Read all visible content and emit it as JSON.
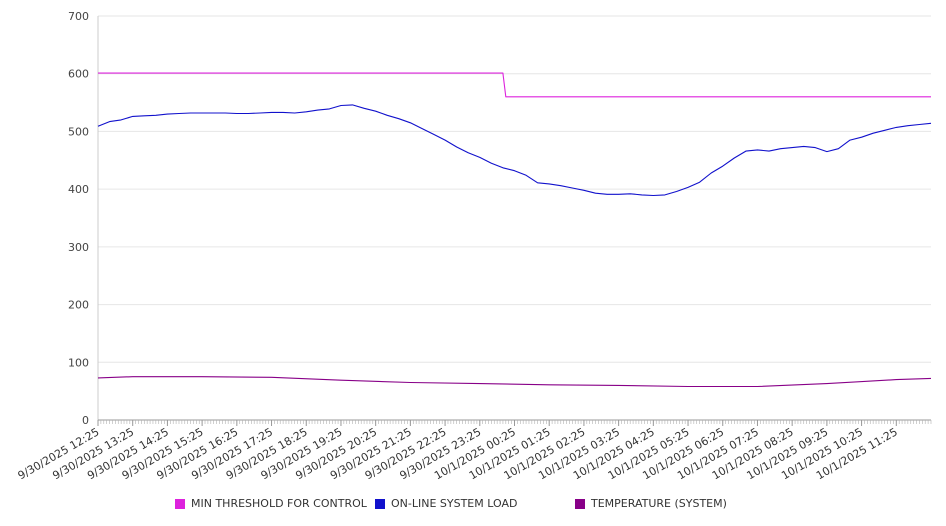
{
  "chart_data": {
    "type": "line",
    "ylim": [
      0,
      700
    ],
    "yticks": [
      0,
      100,
      200,
      300,
      400,
      500,
      600,
      700
    ],
    "grid": true,
    "legend_position": "bottom",
    "x_tick_labels": [
      "9/30/2025 12:25",
      "9/30/2025 13:25",
      "9/30/2025 14:25",
      "9/30/2025 15:25",
      "9/30/2025 16:25",
      "9/30/2025 17:25",
      "9/30/2025 18:25",
      "9/30/2025 19:25",
      "9/30/2025 20:25",
      "9/30/2025 21:25",
      "9/30/2025 22:25",
      "9/30/2025 23:25",
      "10/1/2025 00:25",
      "10/1/2025 01:25",
      "10/1/2025 02:25",
      "10/1/2025 03:25",
      "10/1/2025 04:25",
      "10/1/2025 05:25",
      "10/1/2025 06:25",
      "10/1/2025 07:25",
      "10/1/2025 08:25",
      "10/1/2025 09:25",
      "10/1/2025 10:25",
      "10/1/2025 11:25"
    ],
    "series": [
      {
        "name": "MIN THRESHOLD FOR CONTROL",
        "color": "#dd22dd",
        "points": [
          [
            "9/30/2025 12:25",
            601
          ],
          [
            "10/1/2025 00:05",
            601
          ],
          [
            "10/1/2025 00:10",
            560
          ],
          [
            "10/1/2025 12:25",
            560
          ]
        ]
      },
      {
        "name": "ON-LINE SYSTEM LOAD",
        "color": "#1111cc",
        "points": [
          [
            "9/30/2025 12:25",
            509
          ],
          [
            "9/30/2025 12:45",
            517
          ],
          [
            "9/30/2025 13:05",
            520
          ],
          [
            "9/30/2025 13:25",
            526
          ],
          [
            "9/30/2025 13:45",
            527
          ],
          [
            "9/30/2025 14:05",
            528
          ],
          [
            "9/30/2025 14:25",
            530
          ],
          [
            "9/30/2025 14:45",
            531
          ],
          [
            "9/30/2025 15:05",
            532
          ],
          [
            "9/30/2025 15:25",
            532
          ],
          [
            "9/30/2025 15:45",
            532
          ],
          [
            "9/30/2025 16:05",
            532
          ],
          [
            "9/30/2025 16:25",
            531
          ],
          [
            "9/30/2025 16:45",
            531
          ],
          [
            "9/30/2025 17:05",
            532
          ],
          [
            "9/30/2025 17:25",
            533
          ],
          [
            "9/30/2025 17:45",
            533
          ],
          [
            "9/30/2025 18:05",
            532
          ],
          [
            "9/30/2025 18:25",
            534
          ],
          [
            "9/30/2025 18:45",
            537
          ],
          [
            "9/30/2025 19:05",
            539
          ],
          [
            "9/30/2025 19:25",
            545
          ],
          [
            "9/30/2025 19:45",
            546
          ],
          [
            "9/30/2025 20:05",
            540
          ],
          [
            "9/30/2025 20:25",
            535
          ],
          [
            "9/30/2025 20:45",
            528
          ],
          [
            "9/30/2025 21:05",
            522
          ],
          [
            "9/30/2025 21:25",
            515
          ],
          [
            "9/30/2025 21:45",
            505
          ],
          [
            "9/30/2025 22:05",
            495
          ],
          [
            "9/30/2025 22:25",
            485
          ],
          [
            "9/30/2025 22:45",
            473
          ],
          [
            "9/30/2025 23:05",
            463
          ],
          [
            "9/30/2025 23:25",
            455
          ],
          [
            "9/30/2025 23:45",
            445
          ],
          [
            "10/1/2025 00:05",
            437
          ],
          [
            "10/1/2025 00:25",
            432
          ],
          [
            "10/1/2025 00:45",
            424
          ],
          [
            "10/1/2025 01:05",
            411
          ],
          [
            "10/1/2025 01:25",
            409
          ],
          [
            "10/1/2025 01:45",
            406
          ],
          [
            "10/1/2025 02:05",
            402
          ],
          [
            "10/1/2025 02:25",
            398
          ],
          [
            "10/1/2025 02:45",
            393
          ],
          [
            "10/1/2025 03:05",
            391
          ],
          [
            "10/1/2025 03:25",
            391
          ],
          [
            "10/1/2025 03:45",
            392
          ],
          [
            "10/1/2025 04:05",
            390
          ],
          [
            "10/1/2025 04:25",
            389
          ],
          [
            "10/1/2025 04:45",
            390
          ],
          [
            "10/1/2025 05:05",
            396
          ],
          [
            "10/1/2025 05:25",
            403
          ],
          [
            "10/1/2025 05:45",
            412
          ],
          [
            "10/1/2025 06:05",
            428
          ],
          [
            "10/1/2025 06:25",
            440
          ],
          [
            "10/1/2025 06:45",
            454
          ],
          [
            "10/1/2025 07:05",
            466
          ],
          [
            "10/1/2025 07:25",
            468
          ],
          [
            "10/1/2025 07:45",
            466
          ],
          [
            "10/1/2025 08:05",
            470
          ],
          [
            "10/1/2025 08:25",
            472
          ],
          [
            "10/1/2025 08:45",
            474
          ],
          [
            "10/1/2025 09:05",
            472
          ],
          [
            "10/1/2025 09:25",
            465
          ],
          [
            "10/1/2025 09:45",
            470
          ],
          [
            "10/1/2025 10:05",
            485
          ],
          [
            "10/1/2025 10:25",
            490
          ],
          [
            "10/1/2025 10:45",
            497
          ],
          [
            "10/1/2025 11:05",
            502
          ],
          [
            "10/1/2025 11:25",
            507
          ],
          [
            "10/1/2025 11:45",
            510
          ],
          [
            "10/1/2025 12:05",
            512
          ],
          [
            "10/1/2025 12:25",
            514
          ]
        ]
      },
      {
        "name": "TEMPERATURE (SYSTEM)",
        "color": "#880088",
        "points": [
          [
            "9/30/2025 12:25",
            73
          ],
          [
            "9/30/2025 13:25",
            75
          ],
          [
            "9/30/2025 15:25",
            75
          ],
          [
            "9/30/2025 17:25",
            74
          ],
          [
            "9/30/2025 19:25",
            69
          ],
          [
            "9/30/2025 21:25",
            65
          ],
          [
            "9/30/2025 23:25",
            63
          ],
          [
            "10/1/2025 01:25",
            61
          ],
          [
            "10/1/2025 03:25",
            60
          ],
          [
            "10/1/2025 05:25",
            58
          ],
          [
            "10/1/2025 07:25",
            58
          ],
          [
            "10/1/2025 09:25",
            63
          ],
          [
            "10/1/2025 11:25",
            70
          ],
          [
            "10/1/2025 12:25",
            72
          ]
        ]
      }
    ]
  }
}
